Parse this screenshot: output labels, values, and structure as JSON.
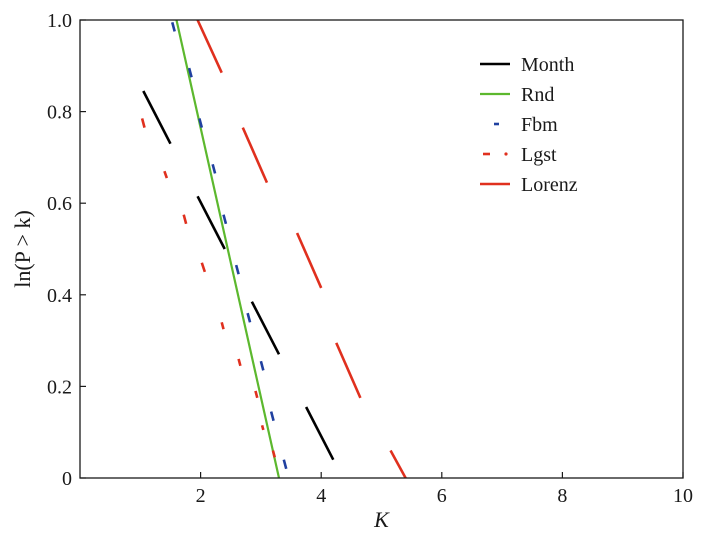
{
  "chart_data": {
    "type": "line",
    "title": "",
    "xlabel": "K",
    "ylabel": "ln(P > k)",
    "xlim": [
      0.0,
      10
    ],
    "ylim": [
      0,
      1.0
    ],
    "xticks": [
      2,
      4,
      6,
      8,
      10
    ],
    "xtick_labels": [
      "2",
      "4",
      "6",
      "8",
      "10"
    ],
    "yticks": [
      0,
      0.2,
      0.4,
      0.6,
      0.8,
      1.0
    ],
    "ytick_labels": [
      "0",
      "0.2",
      "0.4",
      "0.6",
      "0.8",
      "1.0"
    ],
    "grid": false,
    "legend_position": "top-right",
    "series": [
      {
        "name": "Month",
        "color": "#000000",
        "style": "long-dash",
        "segments": [
          [
            [
              1.05,
              0.845
            ],
            [
              1.5,
              0.73
            ]
          ],
          [
            [
              1.95,
              0.615
            ],
            [
              2.4,
              0.5
            ]
          ],
          [
            [
              2.85,
              0.385
            ],
            [
              3.3,
              0.27
            ]
          ],
          [
            [
              3.75,
              0.155
            ],
            [
              4.2,
              0.04
            ]
          ]
        ]
      },
      {
        "name": "Rnd",
        "color": "#5cb82e",
        "style": "solid",
        "segments": [
          [
            [
              1.6,
              1.0
            ],
            [
              3.3,
              0.0
            ]
          ]
        ]
      },
      {
        "name": "Fbm",
        "color": "#2040a0",
        "style": "short-dash",
        "segments": [
          [
            [
              1.53,
              0.995
            ],
            [
              1.57,
              0.975
            ]
          ],
          [
            [
              1.81,
              0.895
            ],
            [
              1.85,
              0.875
            ]
          ],
          [
            [
              1.98,
              0.785
            ],
            [
              2.02,
              0.765
            ]
          ],
          [
            [
              2.2,
              0.685
            ],
            [
              2.24,
              0.665
            ]
          ],
          [
            [
              2.38,
              0.575
            ],
            [
              2.42,
              0.555
            ]
          ],
          [
            [
              2.59,
              0.465
            ],
            [
              2.63,
              0.445
            ]
          ],
          [
            [
              2.78,
              0.36
            ],
            [
              2.82,
              0.34
            ]
          ],
          [
            [
              3.0,
              0.255
            ],
            [
              3.04,
              0.235
            ]
          ],
          [
            [
              3.17,
              0.145
            ],
            [
              3.21,
              0.125
            ]
          ],
          [
            [
              3.38,
              0.04
            ],
            [
              3.42,
              0.02
            ]
          ]
        ]
      },
      {
        "name": "Lgst",
        "color": "#e0301e",
        "style": "dash-dot",
        "segments": [
          [
            [
              1.03,
              0.785
            ],
            [
              1.07,
              0.765
            ]
          ],
          [
            [
              1.4,
              0.67
            ],
            [
              1.44,
              0.655
            ]
          ],
          [
            [
              1.72,
              0.575
            ],
            [
              1.76,
              0.555
            ]
          ],
          [
            [
              2.02,
              0.47
            ],
            [
              2.07,
              0.45
            ]
          ],
          [
            [
              2.35,
              0.34
            ],
            [
              2.38,
              0.325
            ]
          ],
          [
            [
              2.63,
              0.26
            ],
            [
              2.66,
              0.245
            ]
          ],
          [
            [
              2.91,
              0.19
            ],
            [
              2.94,
              0.175
            ]
          ],
          [
            [
              3.02,
              0.115
            ],
            [
              3.04,
              0.105
            ]
          ],
          [
            [
              3.2,
              0.06
            ],
            [
              3.23,
              0.045
            ]
          ]
        ]
      },
      {
        "name": "Lorenz",
        "color": "#e0301e",
        "style": "long-dash",
        "segments": [
          [
            [
              1.95,
              1.0
            ],
            [
              2.35,
              0.885
            ]
          ],
          [
            [
              2.7,
              0.765
            ],
            [
              3.1,
              0.645
            ]
          ],
          [
            [
              3.6,
              0.535
            ],
            [
              4.0,
              0.415
            ]
          ],
          [
            [
              4.25,
              0.295
            ],
            [
              4.65,
              0.175
            ]
          ],
          [
            [
              5.15,
              0.06
            ],
            [
              5.4,
              0.0
            ]
          ]
        ]
      }
    ]
  }
}
